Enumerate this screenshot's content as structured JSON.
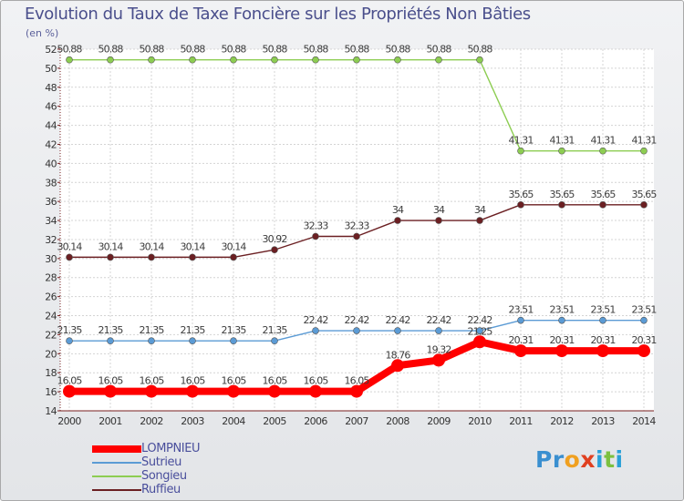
{
  "title": "Evolution du Taux de Taxe Foncière sur les Propriétés Non Bâties",
  "subtitle": "(en %)",
  "brand": "Proxiti",
  "chart_data": {
    "type": "line",
    "title": "Evolution du Taux de Taxe Foncière sur les Propriétés Non Bâties",
    "ylabel": "(en %)",
    "xlabel": "",
    "ylim": [
      14,
      52
    ],
    "yticks": [
      14,
      16,
      18,
      20,
      22,
      24,
      26,
      28,
      30,
      32,
      34,
      36,
      38,
      40,
      42,
      44,
      46,
      48,
      50,
      52
    ],
    "categories": [
      "2000",
      "2001",
      "2002",
      "2003",
      "2004",
      "2005",
      "2006",
      "2007",
      "2008",
      "2009",
      "2010",
      "2011",
      "2012",
      "2013",
      "2014"
    ],
    "legend_position": "bottom-left",
    "series": [
      {
        "name": "LOMPNIEU",
        "color": "#ff0000",
        "highlight": true,
        "values": [
          16.05,
          16.05,
          16.05,
          16.05,
          16.05,
          16.05,
          16.05,
          16.05,
          18.76,
          19.32,
          21.25,
          20.31,
          20.31,
          20.31,
          20.31
        ],
        "labels": [
          "16.05",
          "16.05",
          "16.05",
          "16.05",
          "16.05",
          "16.05",
          "16.05",
          "16.05",
          "18.76",
          "19.32",
          "21.25",
          "20.31",
          "20.31",
          "20.31",
          "20.31"
        ]
      },
      {
        "name": "Sutrieu",
        "color": "#5b9bd5",
        "highlight": false,
        "values": [
          21.35,
          21.35,
          21.35,
          21.35,
          21.35,
          21.35,
          22.42,
          22.42,
          22.42,
          22.42,
          22.42,
          23.51,
          23.51,
          23.51,
          23.51
        ],
        "labels": [
          "21.35",
          "21.35",
          "21.35",
          "21.35",
          "21.35",
          "21.35",
          "22.42",
          "22.42",
          "22.42",
          "22.42",
          "22.42",
          "23.51",
          "23.51",
          "23.51",
          "23.51"
        ]
      },
      {
        "name": "Songieu",
        "color": "#8dcd52",
        "highlight": false,
        "values": [
          50.88,
          50.88,
          50.88,
          50.88,
          50.88,
          50.88,
          50.88,
          50.88,
          50.88,
          50.88,
          50.88,
          41.31,
          41.31,
          41.31,
          41.31
        ],
        "labels": [
          "50.88",
          "50.88",
          "50.88",
          "50.88",
          "50.88",
          "50.88",
          "50.88",
          "50.88",
          "50.88",
          "50.88",
          "50.88",
          "41.31",
          "41.31",
          "41.31",
          "41.31"
        ]
      },
      {
        "name": "Ruffieu",
        "color": "#6b1f22",
        "highlight": false,
        "values": [
          30.14,
          30.14,
          30.14,
          30.14,
          30.14,
          30.92,
          32.33,
          32.33,
          34,
          34,
          34,
          35.65,
          35.65,
          35.65,
          35.65
        ],
        "labels": [
          "30.14",
          "30.14",
          "30.14",
          "30.14",
          "30.14",
          "30.92",
          "32.33",
          "32.33",
          "34",
          "34",
          "34",
          "35.65",
          "35.65",
          "35.65",
          "35.65"
        ]
      }
    ]
  }
}
